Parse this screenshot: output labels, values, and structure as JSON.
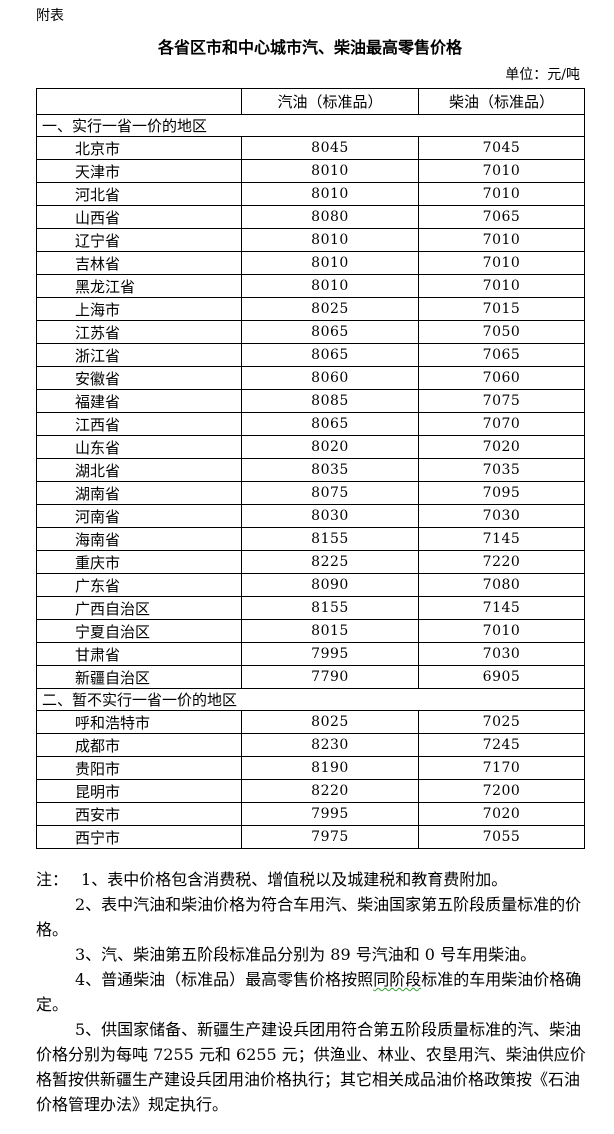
{
  "page": {
    "appendix_label": "附表",
    "title": "各省区市和中心城市汽、柴油最高零售价格",
    "unit_label": "单位：元/吨"
  },
  "colors": {
    "text": "#000000",
    "background": "#ffffff",
    "table_border": "#000000",
    "spellcheck_squiggle": "#33a333"
  },
  "table": {
    "columns": [
      "",
      "汽油（标准品）",
      "柴油（标准品）"
    ],
    "sections": [
      {
        "heading": "一、实行一省一价的地区",
        "rows": [
          {
            "region": "北京市",
            "gasoline": "8045",
            "diesel": "7045"
          },
          {
            "region": "天津市",
            "gasoline": "8010",
            "diesel": "7010"
          },
          {
            "region": "河北省",
            "gasoline": "8010",
            "diesel": "7010"
          },
          {
            "region": "山西省",
            "gasoline": "8080",
            "diesel": "7065"
          },
          {
            "region": "辽宁省",
            "gasoline": "8010",
            "diesel": "7010"
          },
          {
            "region": "吉林省",
            "gasoline": "8010",
            "diesel": "7010"
          },
          {
            "region": "黑龙江省",
            "gasoline": "8010",
            "diesel": "7010"
          },
          {
            "region": "上海市",
            "gasoline": "8025",
            "diesel": "7015"
          },
          {
            "region": "江苏省",
            "gasoline": "8065",
            "diesel": "7050"
          },
          {
            "region": "浙江省",
            "gasoline": "8065",
            "diesel": "7065"
          },
          {
            "region": "安徽省",
            "gasoline": "8060",
            "diesel": "7060"
          },
          {
            "region": "福建省",
            "gasoline": "8085",
            "diesel": "7075"
          },
          {
            "region": "江西省",
            "gasoline": "8065",
            "diesel": "7070"
          },
          {
            "region": "山东省",
            "gasoline": "8020",
            "diesel": "7020"
          },
          {
            "region": "湖北省",
            "gasoline": "8035",
            "diesel": "7035"
          },
          {
            "region": "湖南省",
            "gasoline": "8075",
            "diesel": "7095"
          },
          {
            "region": "河南省",
            "gasoline": "8030",
            "diesel": "7030"
          },
          {
            "region": "海南省",
            "gasoline": "8155",
            "diesel": "7145"
          },
          {
            "region": "重庆市",
            "gasoline": "8225",
            "diesel": "7220"
          },
          {
            "region": "广东省",
            "gasoline": "8090",
            "diesel": "7080"
          },
          {
            "region": "广西自治区",
            "gasoline": "8155",
            "diesel": "7145"
          },
          {
            "region": "宁夏自治区",
            "gasoline": "8015",
            "diesel": "7010"
          },
          {
            "region": "甘肃省",
            "gasoline": "7995",
            "diesel": "7030"
          },
          {
            "region": "新疆自治区",
            "gasoline": "7790",
            "diesel": "6905"
          }
        ]
      },
      {
        "heading": "二、暂不实行一省一价的地区",
        "rows": [
          {
            "region": "呼和浩特市",
            "gasoline": "8025",
            "diesel": "7025"
          },
          {
            "region": "成都市",
            "gasoline": "8230",
            "diesel": "7245"
          },
          {
            "region": "贵阳市",
            "gasoline": "8190",
            "diesel": "7170"
          },
          {
            "region": "昆明市",
            "gasoline": "8220",
            "diesel": "7200"
          },
          {
            "region": "西安市",
            "gasoline": "7995",
            "diesel": "7020"
          },
          {
            "region": "西宁市",
            "gasoline": "7975",
            "diesel": "7055"
          }
        ]
      }
    ]
  },
  "notes": {
    "prefix": "注：",
    "items": [
      {
        "text": "1、表中价格包含消费税、增值税以及城建税和教育费附加。"
      },
      {
        "text": "2、表中汽油和柴油价格为符合车用汽、柴油国家第五阶段质量标准的价格。"
      },
      {
        "text": "3、汽、柴油第五阶段标准品分别为 89 号汽油和 0 号车用柴油。"
      },
      {
        "pre": "4、普通柴油（标准品）最高零售价格按照",
        "spellcheck": "同阶段",
        "post": "标准的车用柴油价格确定。"
      },
      {
        "text": "5、供国家储备、新疆生产建设兵团用符合第五阶段质量标准的汽、柴油价格分别为每吨 7255 元和 6255 元；供渔业、林业、农垦用汽、柴油供应价格暂按供新疆生产建设兵团用油价格执行；其它相关成品油价格政策按《石油价格管理办法》规定执行。"
      }
    ]
  }
}
